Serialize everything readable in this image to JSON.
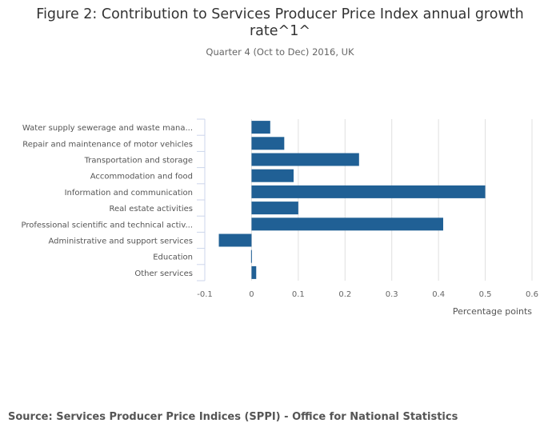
{
  "title": "Figure 2: Contribution to Services Producer Price Index annual growth rate^1^",
  "subtitle": "Quarter 4 (Oct to Dec) 2016, UK",
  "source": "Source: Services Producer Price Indices (SPPI) - Office for National Statistics",
  "chart_data": {
    "type": "bar",
    "orientation": "horizontal",
    "categories": [
      "Water supply sewerage and waste mana...",
      "Repair and maintenance of motor vehicles",
      "Transportation and storage",
      "Accommodation and food",
      "Information and communication",
      "Real estate activities",
      "Professional scientific and technical activ...",
      "Administrative and support services",
      "Education",
      "Other services"
    ],
    "values": [
      0.04,
      0.07,
      0.23,
      0.09,
      0.5,
      0.1,
      0.41,
      -0.07,
      -0.001,
      0.01
    ],
    "xlabel": "Percentage points",
    "xlim": [
      -0.1,
      0.6
    ],
    "xticks": [
      "-0.1",
      "0",
      "0.1",
      "0.2",
      "0.3",
      "0.4",
      "0.5",
      "0.6"
    ],
    "grid": true,
    "color": "#206095"
  }
}
